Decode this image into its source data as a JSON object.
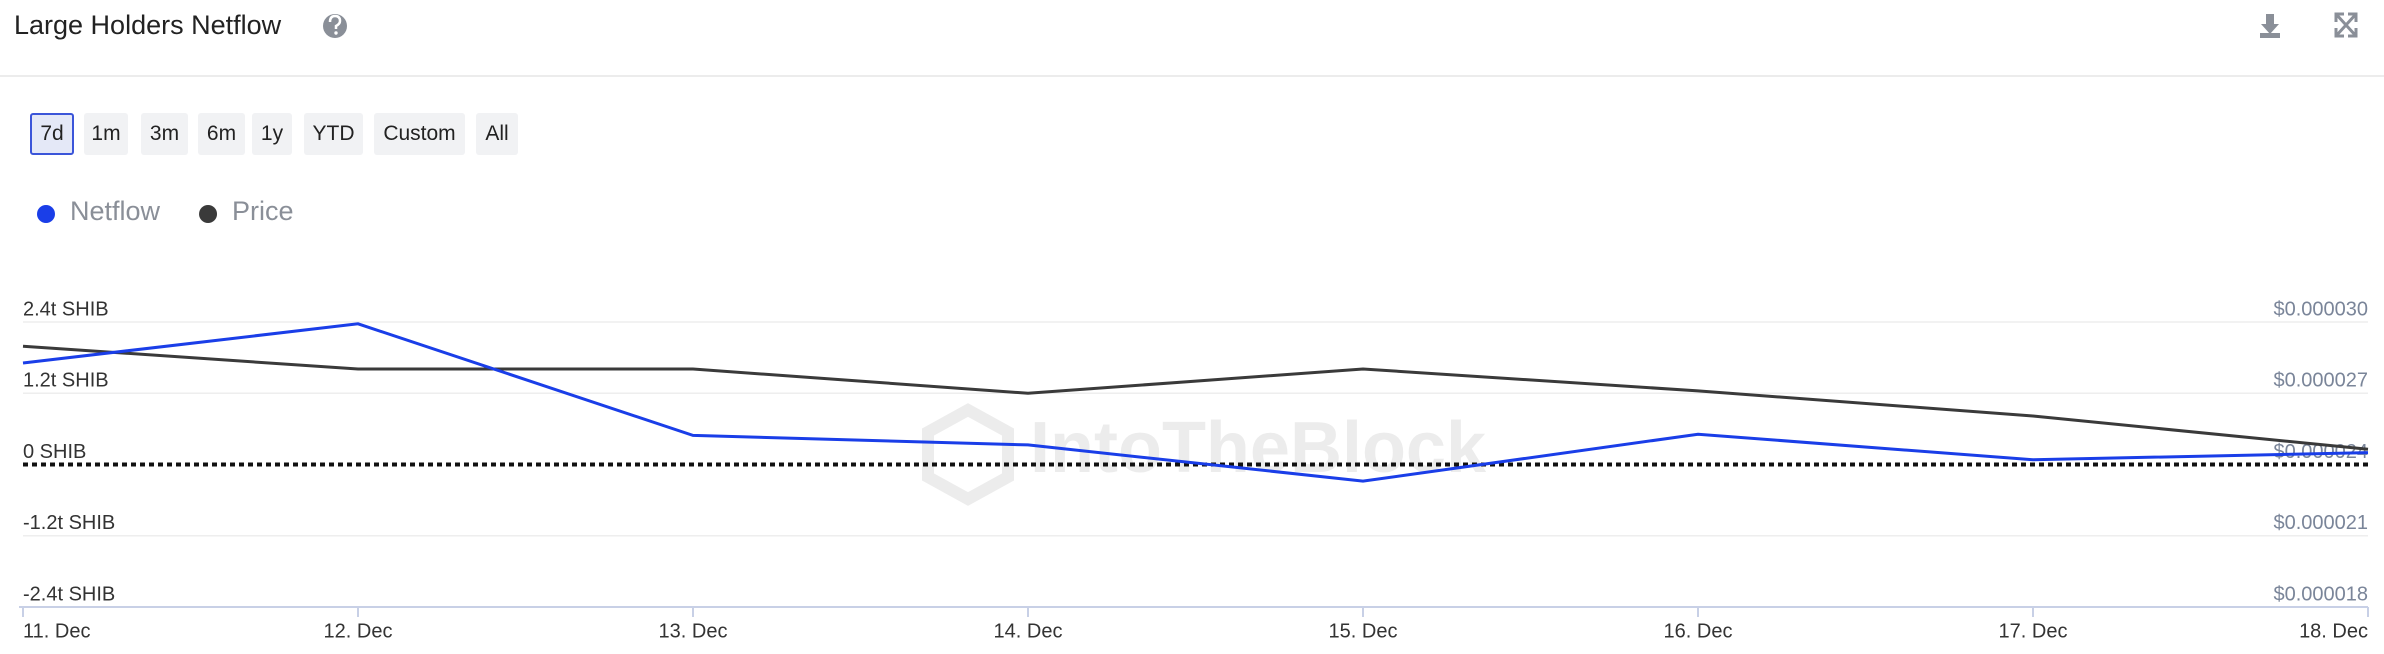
{
  "header": {
    "title": "Large Holders Netflow"
  },
  "range_buttons": {
    "labels": [
      "7d",
      "1m",
      "3m",
      "6m",
      "1y",
      "YTD",
      "Custom",
      "All"
    ],
    "selected_index": 0
  },
  "chart_data": {
    "type": "line",
    "watermark": "IntoTheBlock",
    "categories": [
      "11. Dec",
      "12. Dec",
      "13. Dec",
      "14. Dec",
      "15. Dec",
      "16. Dec",
      "17. Dec",
      "18. Dec"
    ],
    "series": [
      {
        "name": "Netflow",
        "color": "#1a3ee8",
        "values": [
          1710000000000,
          2370000000000,
          490000000000,
          330000000000,
          -280000000000,
          510000000000,
          80000000000,
          200000000000
        ]
      },
      {
        "name": "Price",
        "color": "#3a3a3a",
        "axis": "y2",
        "values": [
          2.898e-05,
          2.802e-05,
          2.802e-05,
          2.7e-05,
          2.802e-05,
          2.71e-05,
          2.604e-05,
          2.464e-05
        ]
      }
    ],
    "ylim": [
      -2400000000000,
      2400000000000
    ],
    "yticks": [
      {
        "value": -2400000000000,
        "label": "-2.4t SHIB"
      },
      {
        "value": -1200000000000,
        "label": "-1.2t SHIB"
      },
      {
        "value": 0,
        "label": "0 SHIB"
      },
      {
        "value": 1200000000000,
        "label": "1.2t SHIB"
      },
      {
        "value": 2400000000000,
        "label": "2.4t SHIB"
      }
    ],
    "y2lim": [
      1.8e-05,
      3e-05
    ],
    "y2ticks": [
      {
        "value": 1.8e-05,
        "label": "$0.000018"
      },
      {
        "value": 2.1e-05,
        "label": "$0.000021"
      },
      {
        "value": 2.4e-05,
        "label": "$0.000024"
      },
      {
        "value": 2.7e-05,
        "label": "$0.000027"
      },
      {
        "value": 3e-05,
        "label": "$0.000030"
      }
    ],
    "grid": true,
    "legend": "top-left"
  }
}
